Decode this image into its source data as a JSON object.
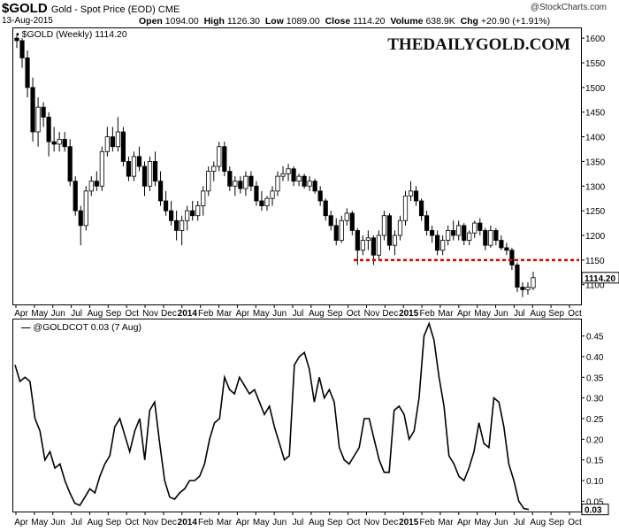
{
  "header": {
    "symbol": "$GOLD",
    "description": "Gold - Spot Price (EOD)  CME",
    "date": "13-Aug-2015",
    "open_label": "Open",
    "open": "1094.00",
    "high_label": "High",
    "high": "1126.30",
    "low_label": "Low",
    "low": "1089.00",
    "close_label": "Close",
    "close": "1114.20",
    "volume_label": "Volume",
    "volume": "638.9K",
    "chg_label": "Chg",
    "chg": "+20.90 (+1.91%)",
    "copyright": "@StockCharts.com"
  },
  "brand": "THEDAILYGOLD.COM",
  "chart_data": [
    {
      "type": "candlestick",
      "legend": "$GOLD (Weekly) 1114.20",
      "last_value_label": "1114.20",
      "ylim": [
        1060,
        1620
      ],
      "yticks": [
        1100,
        1150,
        1200,
        1250,
        1300,
        1350,
        1400,
        1450,
        1500,
        1550,
        1600
      ],
      "reference_line": {
        "value": 1150,
        "color": "#dd0000",
        "style": "dashed"
      },
      "series": [
        {
          "o": 1600,
          "h": 1605,
          "l": 1580,
          "c": 1595
        },
        {
          "o": 1595,
          "h": 1600,
          "l": 1540,
          "c": 1560
        },
        {
          "o": 1560,
          "h": 1575,
          "l": 1480,
          "c": 1500
        },
        {
          "o": 1500,
          "h": 1520,
          "l": 1390,
          "c": 1410
        },
        {
          "o": 1410,
          "h": 1480,
          "l": 1380,
          "c": 1460
        },
        {
          "o": 1460,
          "h": 1470,
          "l": 1420,
          "c": 1440
        },
        {
          "o": 1440,
          "h": 1450,
          "l": 1360,
          "c": 1390
        },
        {
          "o": 1390,
          "h": 1420,
          "l": 1370,
          "c": 1385
        },
        {
          "o": 1385,
          "h": 1410,
          "l": 1370,
          "c": 1395
        },
        {
          "o": 1395,
          "h": 1410,
          "l": 1370,
          "c": 1380
        },
        {
          "o": 1380,
          "h": 1395,
          "l": 1300,
          "c": 1310
        },
        {
          "o": 1310,
          "h": 1320,
          "l": 1240,
          "c": 1250
        },
        {
          "o": 1250,
          "h": 1260,
          "l": 1180,
          "c": 1220
        },
        {
          "o": 1220,
          "h": 1300,
          "l": 1210,
          "c": 1290
        },
        {
          "o": 1290,
          "h": 1320,
          "l": 1280,
          "c": 1310
        },
        {
          "o": 1310,
          "h": 1330,
          "l": 1290,
          "c": 1300
        },
        {
          "o": 1300,
          "h": 1380,
          "l": 1290,
          "c": 1370
        },
        {
          "o": 1370,
          "h": 1420,
          "l": 1360,
          "c": 1400
        },
        {
          "o": 1400,
          "h": 1420,
          "l": 1370,
          "c": 1380
        },
        {
          "o": 1380,
          "h": 1440,
          "l": 1370,
          "c": 1410
        },
        {
          "o": 1410,
          "h": 1420,
          "l": 1340,
          "c": 1350
        },
        {
          "o": 1350,
          "h": 1360,
          "l": 1310,
          "c": 1320
        },
        {
          "o": 1320,
          "h": 1370,
          "l": 1310,
          "c": 1360
        },
        {
          "o": 1360,
          "h": 1380,
          "l": 1330,
          "c": 1340
        },
        {
          "o": 1340,
          "h": 1350,
          "l": 1280,
          "c": 1300
        },
        {
          "o": 1300,
          "h": 1360,
          "l": 1290,
          "c": 1350
        },
        {
          "o": 1350,
          "h": 1370,
          "l": 1300,
          "c": 1310
        },
        {
          "o": 1310,
          "h": 1330,
          "l": 1260,
          "c": 1270
        },
        {
          "o": 1270,
          "h": 1290,
          "l": 1240,
          "c": 1250
        },
        {
          "o": 1250,
          "h": 1270,
          "l": 1220,
          "c": 1230
        },
        {
          "o": 1230,
          "h": 1250,
          "l": 1190,
          "c": 1210
        },
        {
          "o": 1210,
          "h": 1240,
          "l": 1180,
          "c": 1230
        },
        {
          "o": 1230,
          "h": 1260,
          "l": 1210,
          "c": 1250
        },
        {
          "o": 1250,
          "h": 1270,
          "l": 1230,
          "c": 1240
        },
        {
          "o": 1240,
          "h": 1270,
          "l": 1230,
          "c": 1260
        },
        {
          "o": 1260,
          "h": 1300,
          "l": 1240,
          "c": 1290
        },
        {
          "o": 1290,
          "h": 1340,
          "l": 1280,
          "c": 1330
        },
        {
          "o": 1330,
          "h": 1350,
          "l": 1310,
          "c": 1340
        },
        {
          "o": 1340,
          "h": 1390,
          "l": 1330,
          "c": 1380
        },
        {
          "o": 1380,
          "h": 1390,
          "l": 1320,
          "c": 1330
        },
        {
          "o": 1330,
          "h": 1340,
          "l": 1290,
          "c": 1300
        },
        {
          "o": 1300,
          "h": 1320,
          "l": 1280,
          "c": 1310
        },
        {
          "o": 1310,
          "h": 1320,
          "l": 1285,
          "c": 1295
        },
        {
          "o": 1295,
          "h": 1330,
          "l": 1280,
          "c": 1320
        },
        {
          "o": 1320,
          "h": 1330,
          "l": 1290,
          "c": 1300
        },
        {
          "o": 1300,
          "h": 1310,
          "l": 1260,
          "c": 1270
        },
        {
          "o": 1270,
          "h": 1290,
          "l": 1250,
          "c": 1260
        },
        {
          "o": 1260,
          "h": 1280,
          "l": 1250,
          "c": 1275
        },
        {
          "o": 1275,
          "h": 1300,
          "l": 1260,
          "c": 1290
        },
        {
          "o": 1290,
          "h": 1330,
          "l": 1280,
          "c": 1320
        },
        {
          "o": 1320,
          "h": 1340,
          "l": 1310,
          "c": 1325
        },
        {
          "o": 1325,
          "h": 1345,
          "l": 1310,
          "c": 1335
        },
        {
          "o": 1335,
          "h": 1340,
          "l": 1300,
          "c": 1310
        },
        {
          "o": 1310,
          "h": 1325,
          "l": 1300,
          "c": 1320
        },
        {
          "o": 1320,
          "h": 1325,
          "l": 1295,
          "c": 1300
        },
        {
          "o": 1300,
          "h": 1320,
          "l": 1290,
          "c": 1310
        },
        {
          "o": 1310,
          "h": 1315,
          "l": 1285,
          "c": 1290
        },
        {
          "o": 1290,
          "h": 1300,
          "l": 1260,
          "c": 1270
        },
        {
          "o": 1270,
          "h": 1275,
          "l": 1230,
          "c": 1240
        },
        {
          "o": 1240,
          "h": 1250,
          "l": 1210,
          "c": 1220
        },
        {
          "o": 1220,
          "h": 1235,
          "l": 1180,
          "c": 1190
        },
        {
          "o": 1190,
          "h": 1240,
          "l": 1185,
          "c": 1230
        },
        {
          "o": 1230,
          "h": 1255,
          "l": 1220,
          "c": 1245
        },
        {
          "o": 1245,
          "h": 1250,
          "l": 1200,
          "c": 1210
        },
        {
          "o": 1210,
          "h": 1215,
          "l": 1140,
          "c": 1170
        },
        {
          "o": 1170,
          "h": 1200,
          "l": 1160,
          "c": 1190
        },
        {
          "o": 1190,
          "h": 1210,
          "l": 1170,
          "c": 1195
        },
        {
          "o": 1195,
          "h": 1200,
          "l": 1140,
          "c": 1160
        },
        {
          "o": 1160,
          "h": 1210,
          "l": 1150,
          "c": 1200
        },
        {
          "o": 1200,
          "h": 1250,
          "l": 1190,
          "c": 1240
        },
        {
          "o": 1240,
          "h": 1245,
          "l": 1170,
          "c": 1180
        },
        {
          "o": 1180,
          "h": 1210,
          "l": 1160,
          "c": 1200
        },
        {
          "o": 1200,
          "h": 1240,
          "l": 1190,
          "c": 1230
        },
        {
          "o": 1230,
          "h": 1290,
          "l": 1220,
          "c": 1280
        },
        {
          "o": 1280,
          "h": 1310,
          "l": 1270,
          "c": 1290
        },
        {
          "o": 1290,
          "h": 1300,
          "l": 1260,
          "c": 1270
        },
        {
          "o": 1270,
          "h": 1275,
          "l": 1230,
          "c": 1240
        },
        {
          "o": 1240,
          "h": 1250,
          "l": 1200,
          "c": 1210
        },
        {
          "o": 1210,
          "h": 1220,
          "l": 1185,
          "c": 1200
        },
        {
          "o": 1200,
          "h": 1210,
          "l": 1160,
          "c": 1170
        },
        {
          "o": 1170,
          "h": 1200,
          "l": 1160,
          "c": 1190
        },
        {
          "o": 1190,
          "h": 1220,
          "l": 1180,
          "c": 1210
        },
        {
          "o": 1210,
          "h": 1230,
          "l": 1190,
          "c": 1200
        },
        {
          "o": 1200,
          "h": 1230,
          "l": 1190,
          "c": 1220
        },
        {
          "o": 1220,
          "h": 1225,
          "l": 1180,
          "c": 1190
        },
        {
          "o": 1190,
          "h": 1210,
          "l": 1180,
          "c": 1205
        },
        {
          "o": 1205,
          "h": 1230,
          "l": 1195,
          "c": 1225
        },
        {
          "o": 1225,
          "h": 1235,
          "l": 1200,
          "c": 1210
        },
        {
          "o": 1210,
          "h": 1215,
          "l": 1170,
          "c": 1180
        },
        {
          "o": 1180,
          "h": 1220,
          "l": 1175,
          "c": 1210
        },
        {
          "o": 1210,
          "h": 1215,
          "l": 1180,
          "c": 1190
        },
        {
          "o": 1190,
          "h": 1200,
          "l": 1170,
          "c": 1175
        },
        {
          "o": 1175,
          "h": 1185,
          "l": 1160,
          "c": 1170
        },
        {
          "o": 1170,
          "h": 1175,
          "l": 1130,
          "c": 1140
        },
        {
          "o": 1140,
          "h": 1145,
          "l": 1085,
          "c": 1095
        },
        {
          "o": 1095,
          "h": 1105,
          "l": 1075,
          "c": 1090
        },
        {
          "o": 1090,
          "h": 1105,
          "l": 1080,
          "c": 1095
        },
        {
          "o": 1094,
          "h": 1126.3,
          "l": 1089,
          "c": 1114.2
        }
      ],
      "months": [
        "Apr",
        "May",
        "Jun",
        "Jul",
        "Aug",
        "Sep",
        "Oct",
        "Nov",
        "Dec",
        "2014",
        "Feb",
        "Mar",
        "Apr",
        "May",
        "Jun",
        "Jul",
        "Aug",
        "Sep",
        "Oct",
        "Nov",
        "Dec",
        "2015",
        "Feb",
        "Mar",
        "Apr",
        "May",
        "Jun",
        "Jul",
        "Aug",
        "Sep",
        "Oct"
      ]
    },
    {
      "type": "line",
      "legend": "@GOLDCOT 0.03 (7 Aug)",
      "last_value_label": "0.03",
      "ylim": [
        0.025,
        0.49
      ],
      "yticks": [
        0.05,
        0.1,
        0.15,
        0.2,
        0.25,
        0.3,
        0.35,
        0.4,
        0.45
      ],
      "values": [
        0.38,
        0.34,
        0.35,
        0.34,
        0.25,
        0.22,
        0.15,
        0.17,
        0.13,
        0.14,
        0.1,
        0.07,
        0.045,
        0.04,
        0.06,
        0.08,
        0.07,
        0.11,
        0.14,
        0.16,
        0.23,
        0.25,
        0.21,
        0.17,
        0.22,
        0.25,
        0.15,
        0.27,
        0.29,
        0.19,
        0.1,
        0.06,
        0.055,
        0.07,
        0.08,
        0.1,
        0.1,
        0.11,
        0.14,
        0.2,
        0.24,
        0.25,
        0.35,
        0.32,
        0.31,
        0.35,
        0.33,
        0.31,
        0.32,
        0.29,
        0.26,
        0.28,
        0.23,
        0.19,
        0.15,
        0.16,
        0.38,
        0.4,
        0.41,
        0.37,
        0.29,
        0.35,
        0.3,
        0.32,
        0.29,
        0.18,
        0.15,
        0.14,
        0.16,
        0.18,
        0.25,
        0.25,
        0.2,
        0.15,
        0.12,
        0.12,
        0.27,
        0.28,
        0.26,
        0.2,
        0.22,
        0.3,
        0.45,
        0.48,
        0.44,
        0.35,
        0.28,
        0.16,
        0.14,
        0.11,
        0.1,
        0.13,
        0.17,
        0.24,
        0.19,
        0.18,
        0.3,
        0.29,
        0.23,
        0.14,
        0.1,
        0.05,
        0.032,
        0.03
      ]
    }
  ]
}
